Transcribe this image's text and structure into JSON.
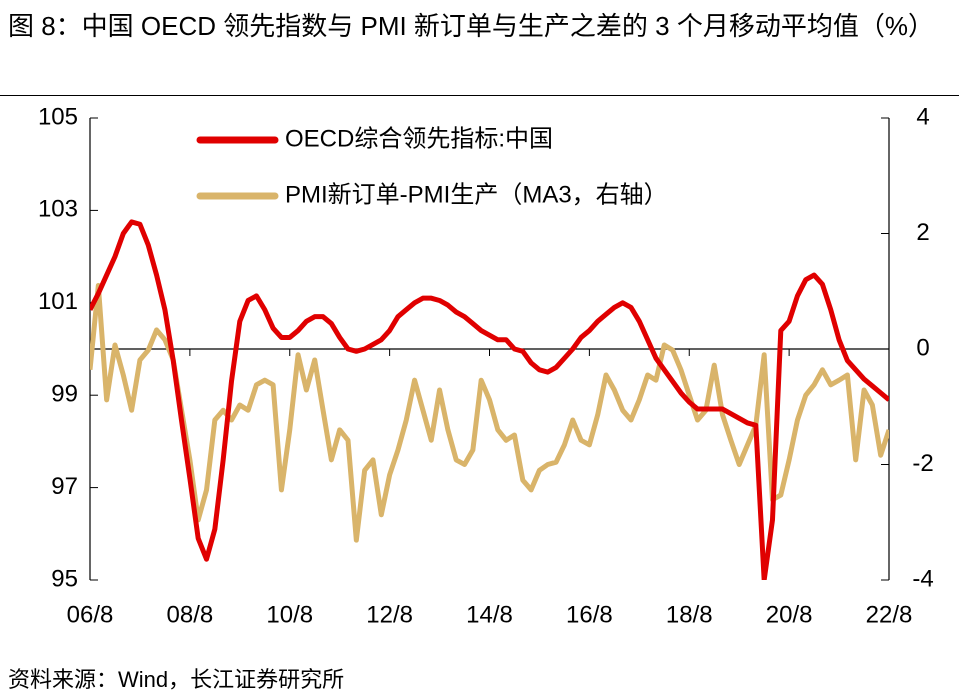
{
  "title": "图 8：中国 OECD 领先指数与 PMI 新订单与生产之差的 3 个月移动平均值（%）",
  "source": "资料来源：Wind，长江证券研究所",
  "chart_data": {
    "type": "line",
    "x": [
      "2006-08",
      "2006-10",
      "2006-12",
      "2007-02",
      "2007-04",
      "2007-06",
      "2007-08",
      "2007-10",
      "2007-12",
      "2008-02",
      "2008-04",
      "2008-06",
      "2008-08",
      "2008-10",
      "2008-12",
      "2009-02",
      "2009-04",
      "2009-06",
      "2009-08",
      "2009-10",
      "2009-12",
      "2010-02",
      "2010-04",
      "2010-06",
      "2010-08",
      "2010-10",
      "2010-12",
      "2011-02",
      "2011-04",
      "2011-06",
      "2011-08",
      "2011-10",
      "2011-12",
      "2012-02",
      "2012-04",
      "2012-06",
      "2012-08",
      "2012-10",
      "2012-12",
      "2013-02",
      "2013-04",
      "2013-06",
      "2013-08",
      "2013-10",
      "2013-12",
      "2014-02",
      "2014-04",
      "2014-06",
      "2014-08",
      "2014-10",
      "2014-12",
      "2015-02",
      "2015-04",
      "2015-06",
      "2015-08",
      "2015-10",
      "2015-12",
      "2016-02",
      "2016-04",
      "2016-06",
      "2016-08",
      "2016-10",
      "2016-12",
      "2017-02",
      "2017-04",
      "2017-06",
      "2017-08",
      "2017-10",
      "2017-12",
      "2018-02",
      "2018-04",
      "2018-06",
      "2018-08",
      "2018-10",
      "2018-12",
      "2019-02",
      "2019-04",
      "2019-06",
      "2019-08",
      "2019-10",
      "2019-12",
      "2020-02",
      "2020-04",
      "2020-06",
      "2020-08",
      "2020-10",
      "2020-12",
      "2021-02",
      "2021-04",
      "2021-06",
      "2021-08",
      "2021-10",
      "2021-12",
      "2022-02",
      "2022-04",
      "2022-06",
      "2022-08"
    ],
    "xlim": [
      "2006-08",
      "2022-08"
    ],
    "xticks": [
      {
        "value": "2006-08",
        "label": "06/8"
      },
      {
        "value": "2008-08",
        "label": "08/8"
      },
      {
        "value": "2010-08",
        "label": "10/8"
      },
      {
        "value": "2012-08",
        "label": "12/8"
      },
      {
        "value": "2014-08",
        "label": "14/8"
      },
      {
        "value": "2016-08",
        "label": "16/8"
      },
      {
        "value": "2018-08",
        "label": "18/8"
      },
      {
        "value": "2020-08",
        "label": "20/8"
      },
      {
        "value": "2022-08",
        "label": "22/8"
      }
    ],
    "ylim": [
      95,
      105
    ],
    "yticks": [
      95,
      97,
      99,
      101,
      103,
      105
    ],
    "y2lim": [
      -4,
      4
    ],
    "y2ticks": [
      -4,
      -2,
      0,
      2,
      4
    ],
    "legend": "upper left",
    "series": [
      {
        "name": "OECD综合领先指标:中国",
        "color": "#e00000",
        "axis": "y",
        "values": [
          100.85,
          101.2,
          101.6,
          102.0,
          102.5,
          102.75,
          102.7,
          102.25,
          101.6,
          100.85,
          99.75,
          98.45,
          97.2,
          95.9,
          95.45,
          96.1,
          97.6,
          99.3,
          100.6,
          101.05,
          101.15,
          100.85,
          100.45,
          100.25,
          100.25,
          100.4,
          100.6,
          100.7,
          100.7,
          100.55,
          100.25,
          100.0,
          99.95,
          100.0,
          100.1,
          100.2,
          100.4,
          100.7,
          100.85,
          101.0,
          101.1,
          101.1,
          101.05,
          100.95,
          100.8,
          100.7,
          100.55,
          100.4,
          100.3,
          100.2,
          100.2,
          100.0,
          99.95,
          99.7,
          99.55,
          99.5,
          99.6,
          99.8,
          100.0,
          100.25,
          100.4,
          100.6,
          100.75,
          100.9,
          101.0,
          100.9,
          100.6,
          100.2,
          99.8,
          99.55,
          99.3,
          99.05,
          98.85,
          98.7,
          98.7,
          98.7,
          98.7,
          98.6,
          98.5,
          98.4,
          98.35,
          95.0,
          96.3,
          100.4,
          100.6,
          101.15,
          101.5,
          101.6,
          101.4,
          100.85,
          100.2,
          99.75,
          99.55,
          99.35,
          99.2,
          99.05,
          98.9
        ]
      },
      {
        "name": "PMI新订单-PMI生产（MA3，右轴）",
        "color": "#d9b46a",
        "axis": "y2",
        "values": [
          -0.36,
          1.1,
          -0.88,
          0.07,
          -0.45,
          -1.06,
          -0.19,
          -0.02,
          0.33,
          0.16,
          -0.19,
          -1.06,
          -1.92,
          -2.96,
          -2.44,
          -1.23,
          -1.06,
          -1.23,
          -0.97,
          -1.06,
          -0.62,
          -0.54,
          -0.62,
          -2.44,
          -1.4,
          -0.1,
          -0.71,
          -0.19,
          -1.06,
          -1.92,
          -1.4,
          -1.58,
          -3.31,
          -2.1,
          -1.92,
          -2.87,
          -2.18,
          -1.75,
          -1.23,
          -0.54,
          -1.06,
          -1.58,
          -0.71,
          -1.4,
          -1.92,
          -2.0,
          -1.75,
          -0.54,
          -0.88,
          -1.4,
          -1.58,
          -1.49,
          -2.27,
          -2.44,
          -2.1,
          -2.0,
          -1.96,
          -1.66,
          -1.23,
          -1.58,
          -1.66,
          -1.14,
          -0.45,
          -0.71,
          -1.06,
          -1.23,
          -0.88,
          -0.45,
          -0.54,
          0.07,
          -0.02,
          -0.36,
          -0.8,
          -1.23,
          -1.06,
          -0.28,
          -1.14,
          -1.58,
          -2.0,
          -1.66,
          -1.32,
          -0.1,
          -2.61,
          -2.53,
          -1.92,
          -1.23,
          -0.8,
          -0.62,
          -0.36,
          -0.62,
          -0.54,
          -0.45,
          -1.92,
          -0.71,
          -0.97,
          -1.84,
          -1.4
        ]
      }
    ]
  }
}
